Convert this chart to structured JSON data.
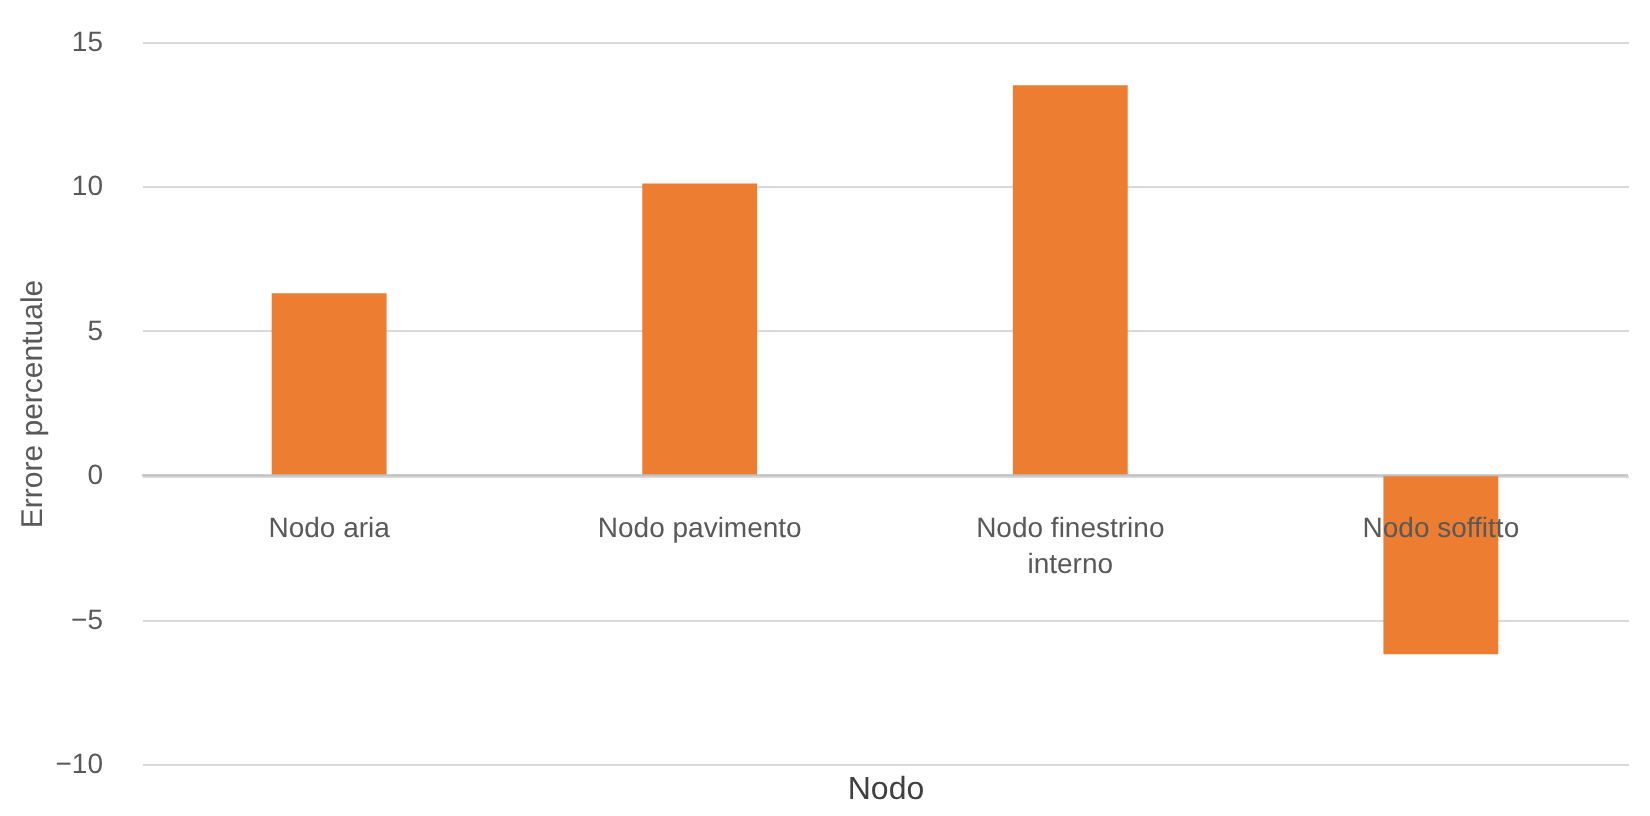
{
  "chart_data": {
    "type": "bar",
    "categories": [
      "Nodo aria",
      "Nodo pavimento",
      "Nodo finestrino interno",
      "Nodo soffitto"
    ],
    "values": [
      6.3,
      10.1,
      13.5,
      -6.2
    ],
    "color": "#ed7d31",
    "xlabel": "Nodo",
    "ylabel": "Errore percentuale",
    "ylim": [
      -10,
      15
    ],
    "yticks": [
      -10,
      -5,
      0,
      5,
      10,
      15
    ],
    "grid": "y"
  }
}
